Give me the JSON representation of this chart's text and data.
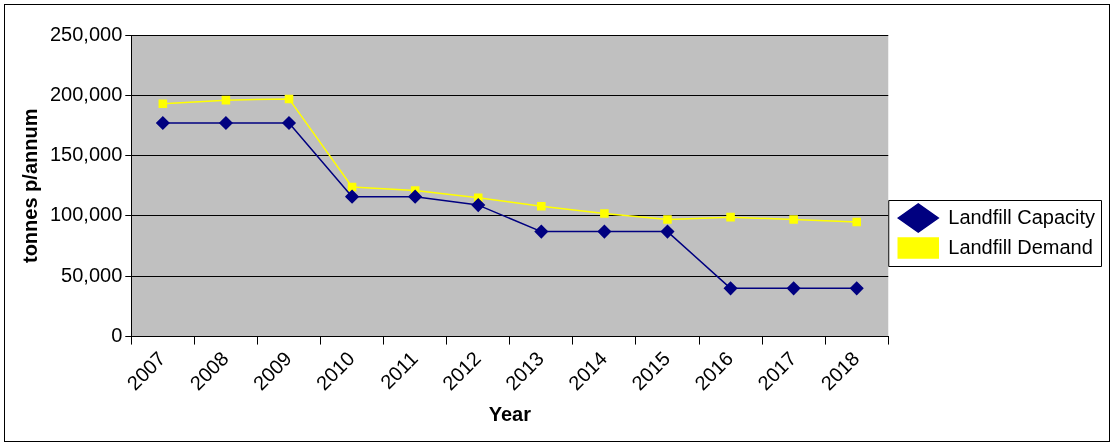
{
  "chart_data": {
    "type": "line",
    "xlabel": "Year",
    "ylabel": "tonnes p/annum",
    "categories": [
      "2007",
      "2008",
      "2009",
      "2010",
      "2011",
      "2012",
      "2013",
      "2014",
      "2015",
      "2016",
      "2017",
      "2018"
    ],
    "series": [
      {
        "name": "Landfill Capacity",
        "color": "#000080",
        "marker": "diamond",
        "values": [
          177000,
          177000,
          177000,
          116000,
          116000,
          109000,
          87000,
          87000,
          87000,
          40000,
          40000,
          40000
        ]
      },
      {
        "name": "Landfill Demand",
        "color": "#ffff00",
        "marker": "square",
        "values": [
          193000,
          196000,
          197000,
          124000,
          121000,
          115000,
          108000,
          102000,
          97000,
          99000,
          97000,
          95000
        ]
      }
    ],
    "ylim": [
      0,
      250000
    ],
    "yticks": [
      0,
      {
        "value": 50000,
        "label": "50,000"
      },
      {
        "value": 100000,
        "label": "100,000"
      },
      {
        "value": 150000,
        "label": "150,000"
      },
      {
        "value": 200000,
        "label": "200,000"
      },
      {
        "value": 250000,
        "label": "250,000"
      }
    ],
    "grid": "y",
    "legend": "right",
    "line_style": "solid"
  }
}
